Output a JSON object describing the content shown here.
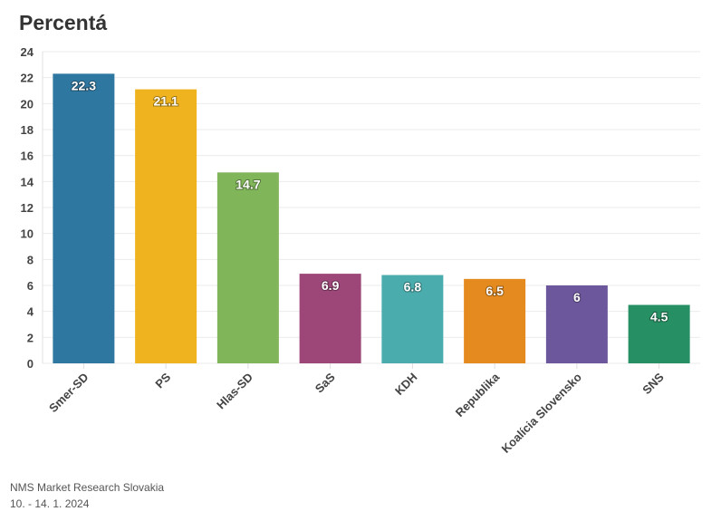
{
  "chart_data": {
    "type": "bar",
    "title": "Percentá",
    "categories": [
      "Smer-SD",
      "PS",
      "Hlas-SD",
      "SaS",
      "KDH",
      "Republika",
      "Koalícia Slovensko",
      "SNS"
    ],
    "values": [
      22.3,
      21.1,
      14.7,
      6.9,
      6.8,
      6.5,
      6,
      4.5
    ],
    "data_labels": [
      "22.3",
      "21.1",
      "14.7",
      "6.9",
      "6.8",
      "6.5",
      "6",
      "4.5"
    ],
    "colors": [
      "#2e77a0",
      "#efb31f",
      "#80b55a",
      "#9c4778",
      "#4bacad",
      "#e48a1f",
      "#6d579c",
      "#268f63"
    ],
    "ylim": [
      0,
      24
    ],
    "yticks": [
      0,
      2,
      4,
      6,
      8,
      10,
      12,
      14,
      16,
      18,
      20,
      22,
      24
    ],
    "grid": true,
    "legend": "none"
  },
  "footer": {
    "source": "NMS Market Research Slovakia",
    "date": "10. - 14. 1. 2024"
  }
}
